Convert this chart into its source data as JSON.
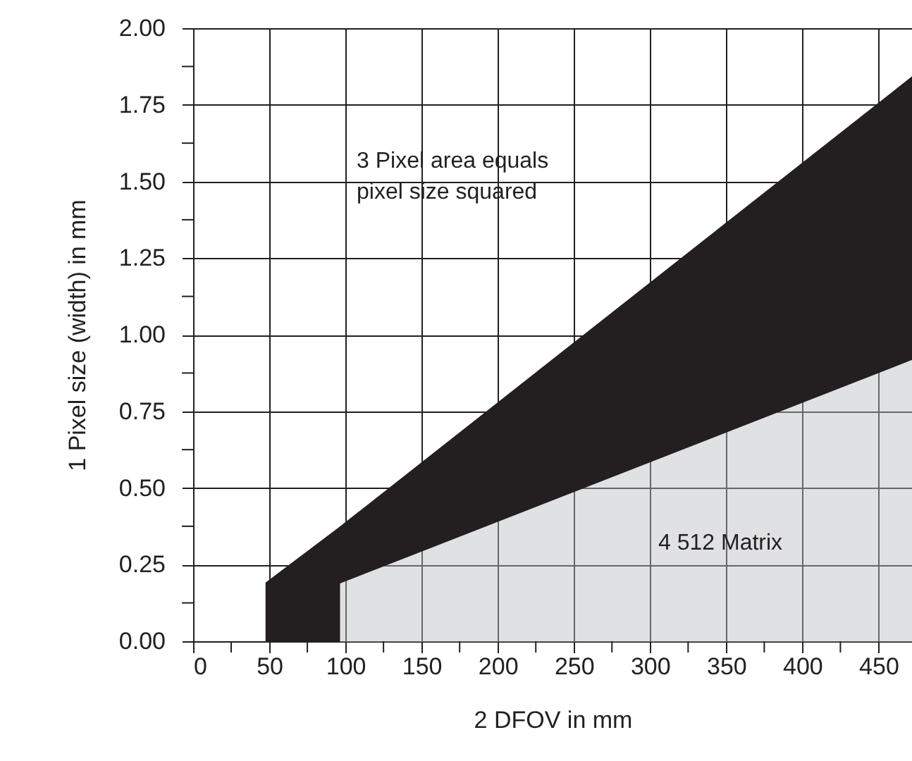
{
  "chart_data": {
    "type": "area",
    "xlabel": "2 DFOV in mm",
    "ylabel": "1 Pixel size (width) in mm",
    "annotations": [
      "3 Pixel area equals pixel size squared",
      "4 512 Matrix"
    ],
    "xlim": [
      0,
      472
    ],
    "xticks": [
      0,
      {
        "value": 25,
        "label": null
      },
      50,
      {
        "value": 75,
        "label": null
      },
      100,
      {
        "value": 125,
        "label": null
      },
      150,
      {
        "value": 175,
        "label": null
      },
      200,
      {
        "value": 225,
        "label": null
      },
      250,
      {
        "value": 275,
        "label": null
      },
      300,
      {
        "value": 325,
        "label": null
      },
      350,
      {
        "value": 375,
        "label": null
      },
      400,
      {
        "value": 425,
        "label": null
      },
      450
    ],
    "ylim": [
      0,
      2
    ],
    "yticks": [
      {
        "value": 0,
        "label": "0.00"
      },
      {
        "value": 0.125,
        "label": null
      },
      {
        "value": 0.25,
        "label": "0.25"
      },
      {
        "value": 0.375,
        "label": null
      },
      {
        "value": 0.5,
        "label": "0.50"
      },
      {
        "value": 0.625,
        "label": null
      },
      {
        "value": 0.75,
        "label": "0.75"
      },
      {
        "value": 0.875,
        "label": null
      },
      {
        "value": 1,
        "label": "1.00"
      },
      {
        "value": 1.125,
        "label": null
      },
      {
        "value": 1.25,
        "label": "1.25"
      },
      {
        "value": 1.375,
        "label": null
      },
      {
        "value": 1.5,
        "label": "1.50"
      },
      {
        "value": 1.625,
        "label": null
      },
      {
        "value": 1.75,
        "label": "1.75"
      },
      {
        "value": 1.875,
        "label": null
      },
      {
        "value": 2,
        "label": "2.00"
      }
    ],
    "grid": true,
    "stacked": true,
    "x": [
      48,
      96,
      96,
      472
    ],
    "series": [
      {
        "type": "area",
        "color": "#bcbec0",
        "values": [
          0,
          0,
          0.19,
          0.92
        ]
      },
      {
        "type": "area",
        "color": "#231f20",
        "values": [
          0.19,
          0.37,
          0.18,
          0.92
        ]
      }
    ]
  }
}
